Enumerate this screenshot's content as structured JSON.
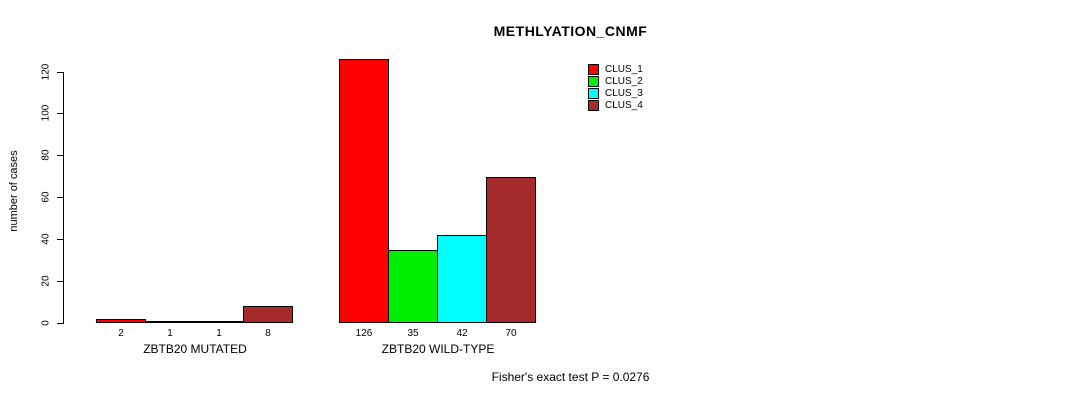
{
  "chart_data": {
    "type": "bar",
    "title": "METHLYATION_CNMF",
    "ylabel": "number of cases",
    "xlabel": "",
    "ylim": [
      0,
      130
    ],
    "yticks": [
      0,
      20,
      40,
      60,
      80,
      100,
      120
    ],
    "grid": false,
    "legend_position": "top-right",
    "categories": [
      "ZBTB20 MUTATED",
      "ZBTB20 WILD-TYPE"
    ],
    "series": [
      {
        "name": "CLUS_1",
        "color": "#FF0000",
        "values": [
          2,
          126
        ]
      },
      {
        "name": "CLUS_2",
        "color": "#00EE00",
        "values": [
          1,
          35
        ]
      },
      {
        "name": "CLUS_3",
        "color": "#00FFFF",
        "values": [
          1,
          42
        ]
      },
      {
        "name": "CLUS_4",
        "color": "#A52A2A",
        "values": [
          8,
          70
        ]
      }
    ],
    "bar_value_labels_shown": true,
    "footer": "Fisher's exact test P = 0.0276"
  }
}
